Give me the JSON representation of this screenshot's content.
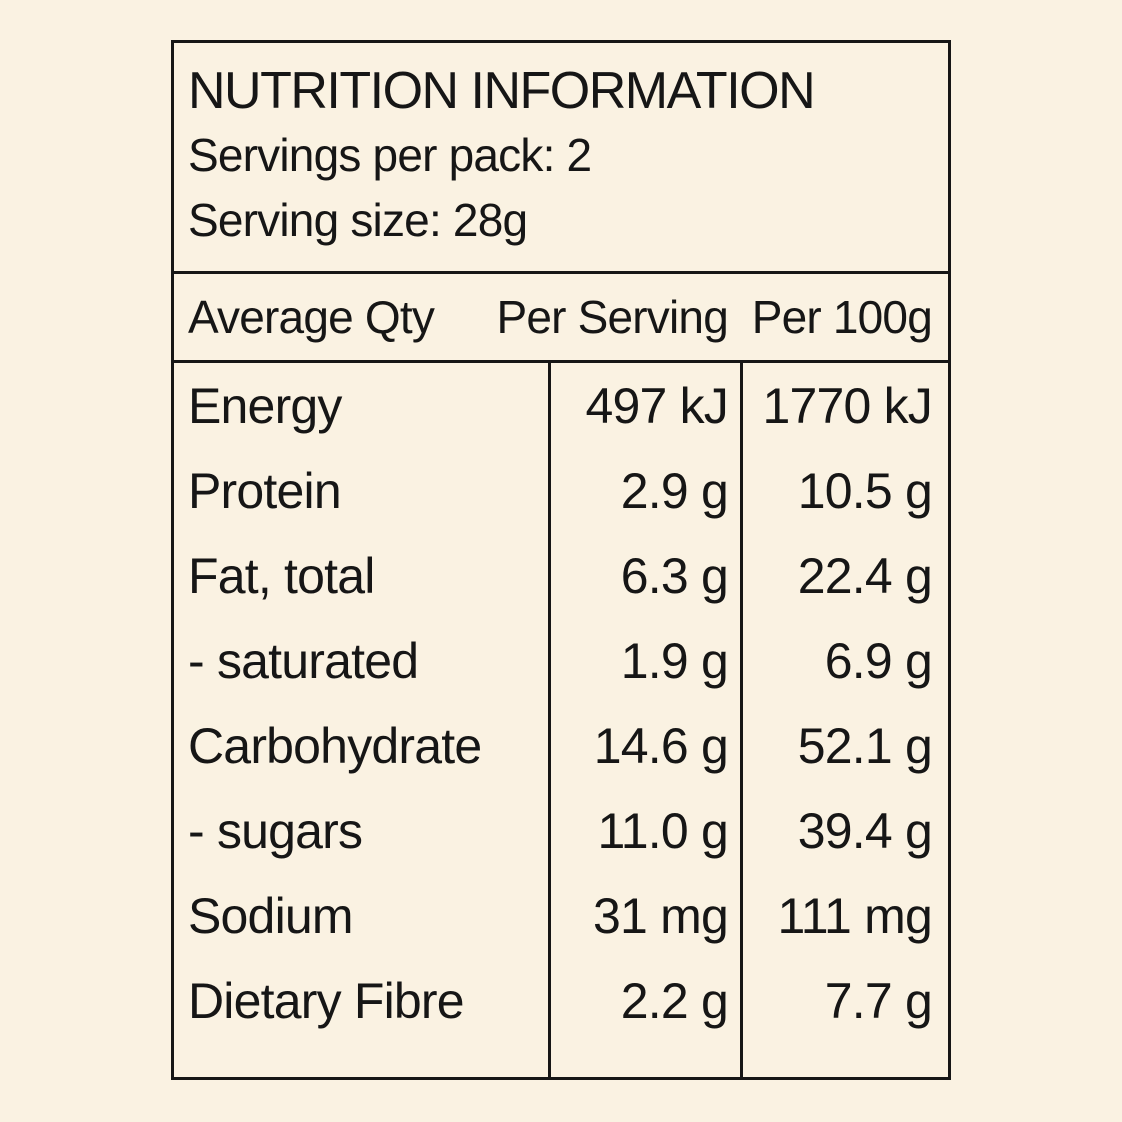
{
  "panel": {
    "title": "NUTRITION INFORMATION",
    "servings_per_pack": "Servings per pack: 2",
    "serving_size": "Serving size: 28g",
    "columns": {
      "qty": "Average Qty",
      "per_serving": "Per Serving",
      "per_100g": "Per 100g"
    },
    "rows": [
      {
        "label": "Energy",
        "per_serving": "497 kJ",
        "per_100g": "1770 kJ"
      },
      {
        "label": "Protein",
        "per_serving": "2.9 g",
        "per_100g": "10.5 g"
      },
      {
        "label": "Fat, total",
        "per_serving": "6.3 g",
        "per_100g": "22.4 g"
      },
      {
        "label": "- saturated",
        "per_serving": "1.9 g",
        "per_100g": "6.9 g"
      },
      {
        "label": "Carbohydrate",
        "per_serving": "14.6 g",
        "per_100g": "52.1 g"
      },
      {
        "label": "- sugars",
        "per_serving": "11.0 g",
        "per_100g": "39.4 g"
      },
      {
        "label": "Sodium",
        "per_serving": "31 mg",
        "per_100g": "111 mg"
      },
      {
        "label": "Dietary Fibre",
        "per_serving": "2.2 g",
        "per_100g": "7.7 g"
      }
    ],
    "colors": {
      "background": "#FAF2E2",
      "ink": "#161616"
    }
  }
}
